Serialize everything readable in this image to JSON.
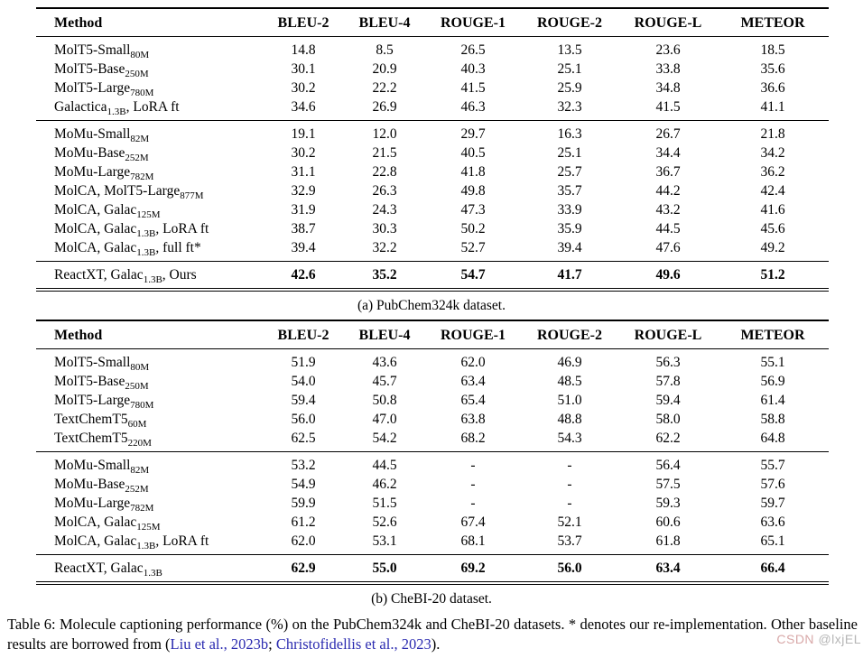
{
  "colors": {
    "citation_link": "#2b2bb0",
    "watermark_brand": "#d8a8a8",
    "watermark_user": "#b5b5b5",
    "text": "#000000",
    "background": "#ffffff"
  },
  "watermark": {
    "brand": "CSDN",
    "user": "@lxjEL"
  },
  "caption_segments": [
    {
      "text": "Table 6: Molecule captioning performance (%) on the PubChem324k and CheBI-20 datasets. * denotes our re-implementation. Other baseline results are borrowed from (",
      "link": false
    },
    {
      "text": "Liu et al., 2023b",
      "link": true
    },
    {
      "text": "; ",
      "link": false
    },
    {
      "text": "Christofidellis et al., 2023",
      "link": true
    },
    {
      "text": ").",
      "link": false
    }
  ],
  "tables": [
    {
      "subcaption": "(a) PubChem324k dataset.",
      "headers": [
        "Method",
        "BLEU-2",
        "BLEU-4",
        "ROUGE-1",
        "ROUGE-2",
        "ROUGE-L",
        "METEOR"
      ],
      "groups": [
        {
          "bold": false,
          "rows": [
            {
              "method": "MolT5-Small~80M~",
              "values": [
                "14.8",
                "8.5",
                "26.5",
                "13.5",
                "23.6",
                "18.5"
              ]
            },
            {
              "method": "MolT5-Base~250M~",
              "values": [
                "30.1",
                "20.9",
                "40.3",
                "25.1",
                "33.8",
                "35.6"
              ]
            },
            {
              "method": "MolT5-Large~780M~",
              "values": [
                "30.2",
                "22.2",
                "41.5",
                "25.9",
                "34.8",
                "36.6"
              ]
            },
            {
              "method": "Galactica~1.3B~, LoRA ft",
              "values": [
                "34.6",
                "26.9",
                "46.3",
                "32.3",
                "41.5",
                "41.1"
              ]
            }
          ]
        },
        {
          "bold": false,
          "rows": [
            {
              "method": "MoMu-Small~82M~",
              "values": [
                "19.1",
                "12.0",
                "29.7",
                "16.3",
                "26.7",
                "21.8"
              ]
            },
            {
              "method": "MoMu-Base~252M~",
              "values": [
                "30.2",
                "21.5",
                "40.5",
                "25.1",
                "34.4",
                "34.2"
              ]
            },
            {
              "method": "MoMu-Large~782M~",
              "values": [
                "31.1",
                "22.8",
                "41.8",
                "25.7",
                "36.7",
                "36.2"
              ]
            },
            {
              "method": "MolCA, MolT5-Large~877M~",
              "values": [
                "32.9",
                "26.3",
                "49.8",
                "35.7",
                "44.2",
                "42.4"
              ]
            },
            {
              "method": "MolCA, Galac~125M~",
              "values": [
                "31.9",
                "24.3",
                "47.3",
                "33.9",
                "43.2",
                "41.6"
              ]
            },
            {
              "method": "MolCA, Galac~1.3B~, LoRA ft",
              "values": [
                "38.7",
                "30.3",
                "50.2",
                "35.9",
                "44.5",
                "45.6"
              ]
            },
            {
              "method": "MolCA, Galac~1.3B~, full ft*",
              "values": [
                "39.4",
                "32.2",
                "52.7",
                "39.4",
                "47.6",
                "49.2"
              ]
            }
          ]
        },
        {
          "bold": true,
          "rows": [
            {
              "method": "ReactXT, Galac~1.3B~, Ours",
              "values": [
                "42.6",
                "35.2",
                "54.7",
                "41.7",
                "49.6",
                "51.2"
              ]
            }
          ]
        }
      ]
    },
    {
      "subcaption": "(b) CheBI-20 dataset.",
      "headers": [
        "Method",
        "BLEU-2",
        "BLEU-4",
        "ROUGE-1",
        "ROUGE-2",
        "ROUGE-L",
        "METEOR"
      ],
      "groups": [
        {
          "bold": false,
          "rows": [
            {
              "method": "MolT5-Small~80M~",
              "values": [
                "51.9",
                "43.6",
                "62.0",
                "46.9",
                "56.3",
                "55.1"
              ]
            },
            {
              "method": "MolT5-Base~250M~",
              "values": [
                "54.0",
                "45.7",
                "63.4",
                "48.5",
                "57.8",
                "56.9"
              ]
            },
            {
              "method": "MolT5-Large~780M~",
              "values": [
                "59.4",
                "50.8",
                "65.4",
                "51.0",
                "59.4",
                "61.4"
              ]
            },
            {
              "method": "TextChemT5~60M~",
              "values": [
                "56.0",
                "47.0",
                "63.8",
                "48.8",
                "58.0",
                "58.8"
              ]
            },
            {
              "method": "TextChemT5~220M~",
              "values": [
                "62.5",
                "54.2",
                "68.2",
                "54.3",
                "62.2",
                "64.8"
              ]
            }
          ]
        },
        {
          "bold": false,
          "rows": [
            {
              "method": "MoMu-Small~82M~",
              "values": [
                "53.2",
                "44.5",
                "-",
                "-",
                "56.4",
                "55.7"
              ]
            },
            {
              "method": "MoMu-Base~252M~",
              "values": [
                "54.9",
                "46.2",
                "-",
                "-",
                "57.5",
                "57.6"
              ]
            },
            {
              "method": "MoMu-Large~782M~",
              "values": [
                "59.9",
                "51.5",
                "-",
                "-",
                "59.3",
                "59.7"
              ]
            },
            {
              "method": "MolCA, Galac~125M~",
              "values": [
                "61.2",
                "52.6",
                "67.4",
                "52.1",
                "60.6",
                "63.6"
              ]
            },
            {
              "method": "MolCA, Galac~1.3B~, LoRA ft",
              "values": [
                "62.0",
                "53.1",
                "68.1",
                "53.7",
                "61.8",
                "65.1"
              ]
            }
          ]
        },
        {
          "bold": true,
          "rows": [
            {
              "method": "ReactXT, Galac~1.3B~",
              "values": [
                "62.9",
                "55.0",
                "69.2",
                "56.0",
                "63.4",
                "66.4"
              ]
            }
          ]
        }
      ]
    }
  ]
}
